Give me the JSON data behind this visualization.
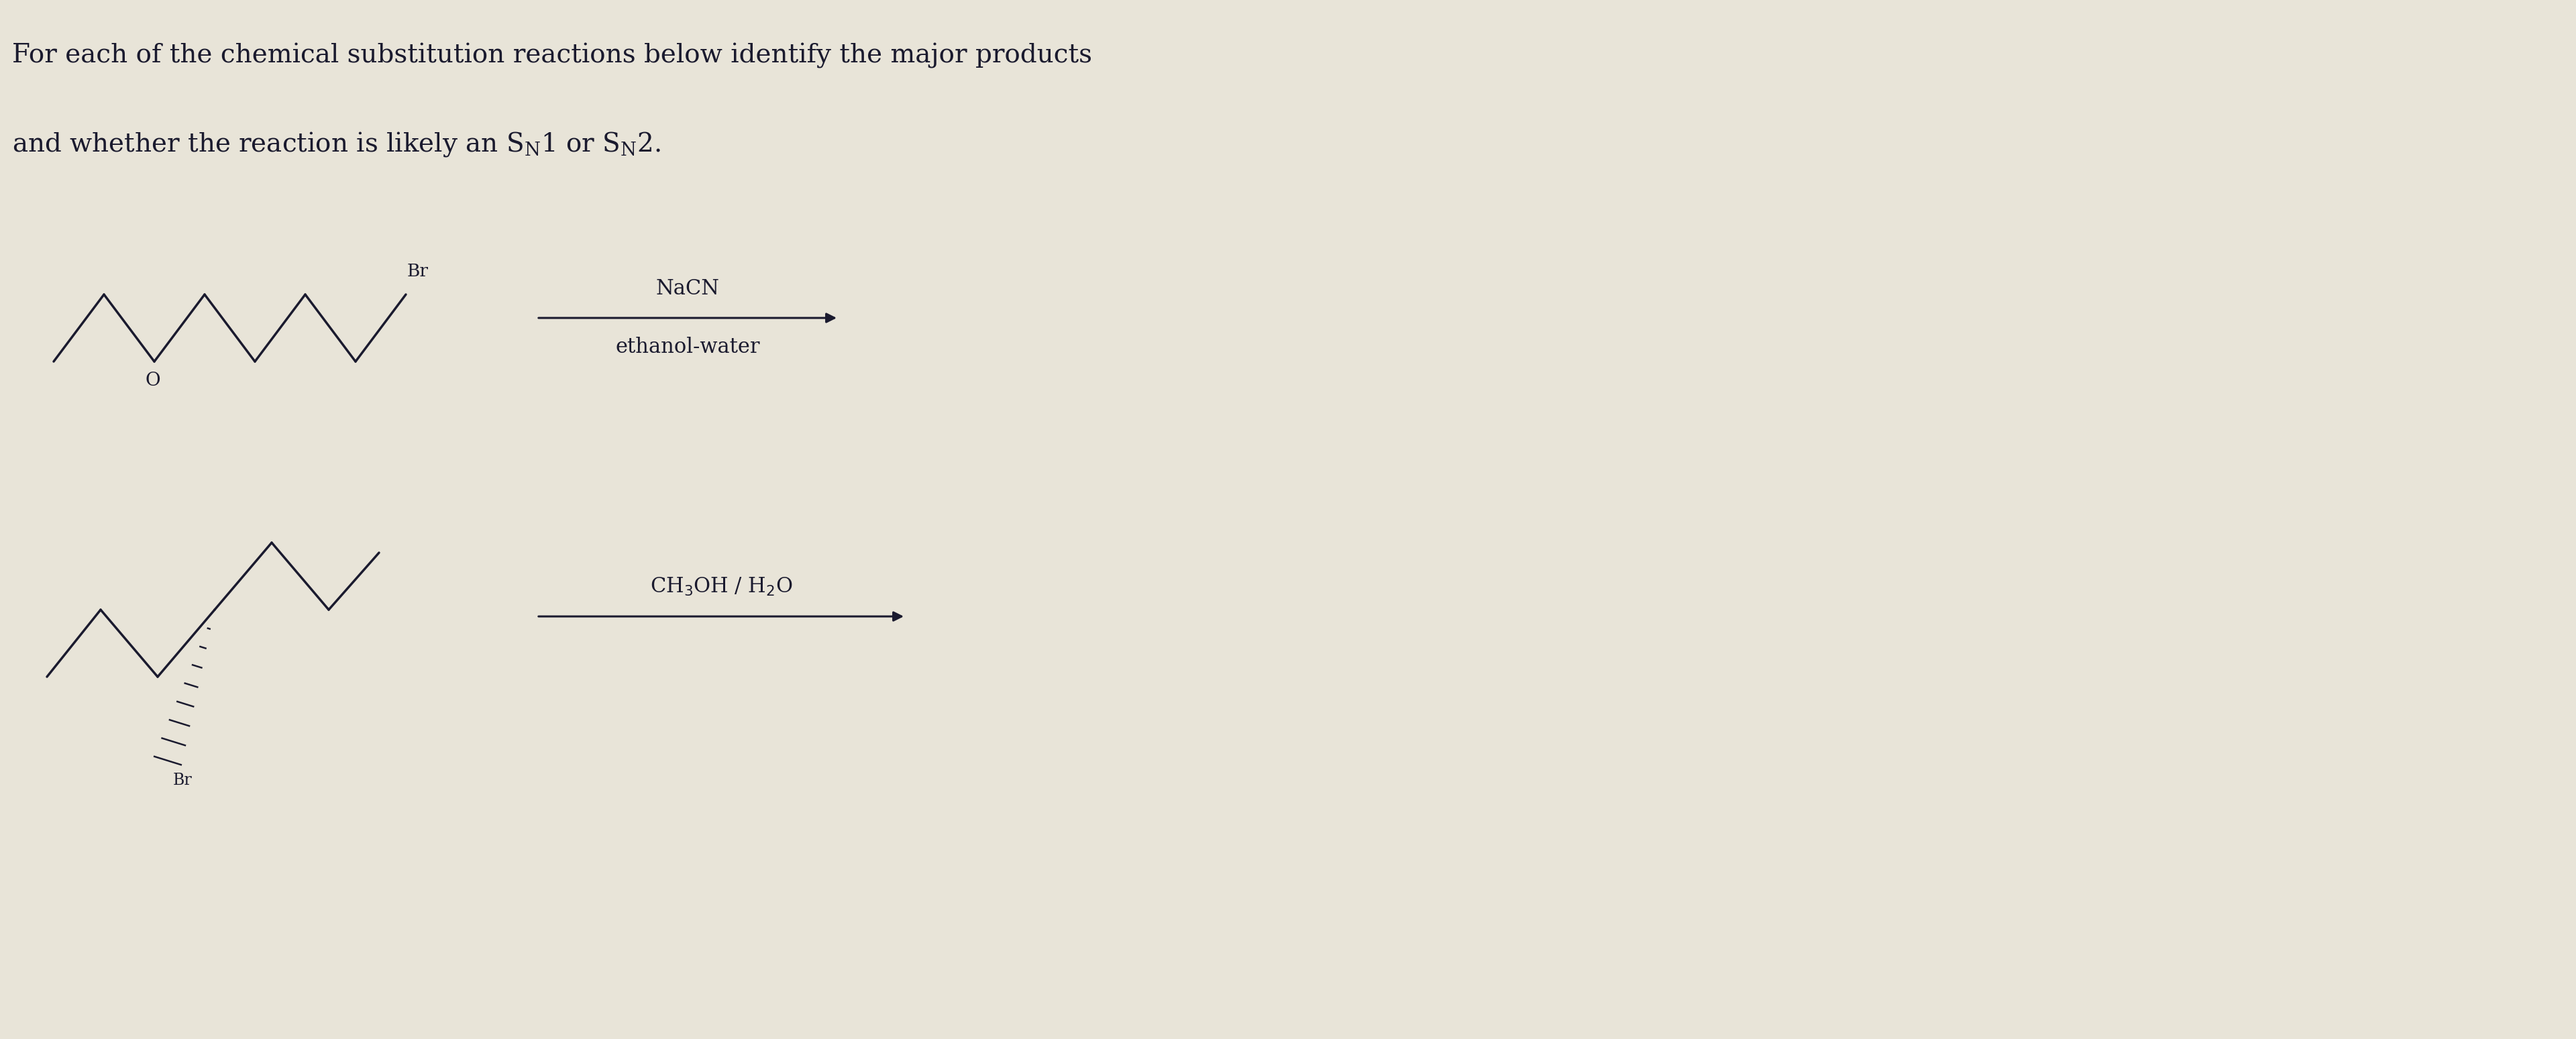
{
  "background_color": "#e8e4d8",
  "text_color": "#1a1a2e",
  "title_line1": "For each of the chemical substitution reactions below identify the major products",
  "title_fontsize": 28,
  "fig_width": 38.4,
  "fig_height": 15.49,
  "rxn1_reagent_above": "NaCN",
  "rxn1_reagent_below": "ethanol-water",
  "arrow_color": "#1a1a2e",
  "line_width": 2.5,
  "mol_color": "#1a1a2e"
}
